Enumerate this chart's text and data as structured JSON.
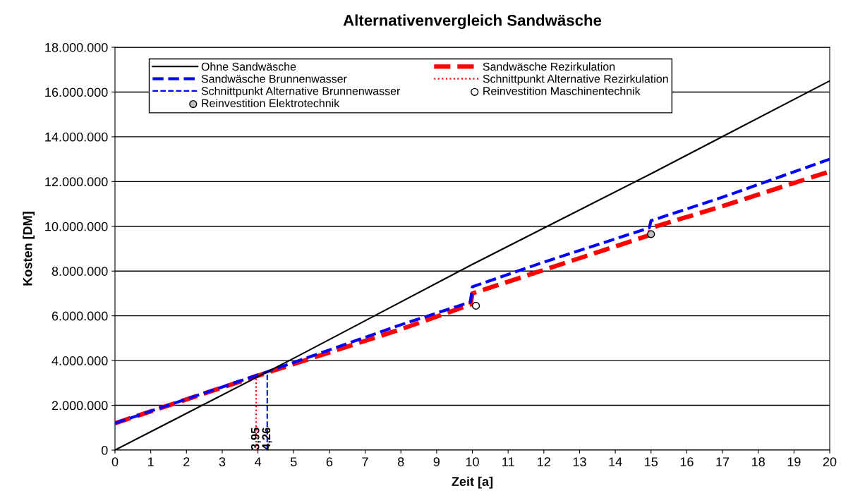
{
  "chart_data": {
    "type": "line",
    "title": "Alternativenvergleich Sandwäsche",
    "xlabel": "Zeit [a]",
    "ylabel": "Kosten [DM]",
    "series": [
      {
        "name": "Ohne Sandwäsche",
        "color": "#000000",
        "line_style": "solid",
        "x": [
          0,
          5,
          10,
          15,
          20
        ],
        "values": [
          0,
          4100000,
          8300000,
          12350000,
          16500000
        ]
      },
      {
        "name": "Sandwäsche Brunnenwasser",
        "color": "#0000ff",
        "line_style": "dashed",
        "x": [
          0,
          4.26,
          8,
          9.95,
          10,
          12,
          14.95,
          15,
          17,
          20
        ],
        "values": [
          1200000,
          3500000,
          5600000,
          6620000,
          7300000,
          8400000,
          9930000,
          10250000,
          11300000,
          13000000
        ]
      },
      {
        "name": "Schnittpunkt Alternative Brunnenwasser",
        "color": "#0000ff",
        "line_style": "dashed",
        "x": [
          4.26,
          4.26
        ],
        "values": [
          0,
          3500000
        ]
      },
      {
        "name": "Reinvestition Elektrotechnik",
        "type": "scatter",
        "marker": "circle",
        "color": "#c0c0c0",
        "x": [
          15
        ],
        "values": [
          9650000
        ]
      },
      {
        "name": "Sandwäsche Rezirkulation",
        "color": "#ff0000",
        "line_style": "dashed",
        "x": [
          0,
          3.95,
          8,
          9.95,
          10,
          12,
          14.95,
          15,
          17,
          20
        ],
        "values": [
          1200000,
          3300000,
          5400000,
          6500000,
          7000000,
          8050000,
          9600000,
          9930000,
          10900000,
          12450000
        ]
      },
      {
        "name": "Schnittpunkt Alternative Rezirkulation",
        "color": "#ff0000",
        "line_style": "dotted",
        "x": [
          3.95,
          3.95
        ],
        "values": [
          0,
          3300000
        ]
      },
      {
        "name": "Reinvestition Maschinentechnik",
        "type": "scatter",
        "marker": "circle",
        "color": "#ffffff",
        "x": [
          10.1
        ],
        "values": [
          6450000
        ]
      }
    ],
    "annotations": [
      {
        "text": "3,95",
        "x": 3.95,
        "y": 0
      },
      {
        "text": "4,26",
        "x": 4.26,
        "y": 0
      }
    ],
    "xlim": [
      0,
      20
    ],
    "xticks": [
      0,
      1,
      2,
      3,
      4,
      5,
      6,
      7,
      8,
      9,
      10,
      11,
      12,
      13,
      14,
      15,
      16,
      17,
      18,
      19,
      20
    ],
    "ylim": [
      0,
      18000000
    ],
    "yticks": [
      {
        "value": 0,
        "label": "0"
      },
      {
        "value": 2000000,
        "label": "2.000.000"
      },
      {
        "value": 4000000,
        "label": "4.000.000"
      },
      {
        "value": 6000000,
        "label": "6.000.000"
      },
      {
        "value": 8000000,
        "label": "8.000.000"
      },
      {
        "value": 10000000,
        "label": "10.000.000"
      },
      {
        "value": 12000000,
        "label": "12.000.000"
      },
      {
        "value": 14000000,
        "label": "14.000.000"
      },
      {
        "value": 16000000,
        "label": "16.000.000"
      },
      {
        "value": 18000000,
        "label": "18.000.000"
      }
    ],
    "grid": "y",
    "legend": "top left"
  }
}
